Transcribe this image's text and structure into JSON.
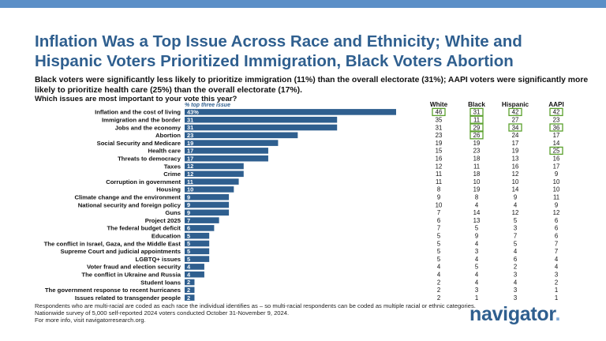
{
  "header": {
    "title": "Inflation Was a Top Issue Across Race and Ethnicity; White and Hispanic Voters Prioritized Immigration, Black Voters Abortion",
    "subtitle": "Black voters were significantly less likely to prioritize immigration (11%) than the overall electorate (31%); AAPI voters were significantly more likely to prioritize health care (25%) than the overall electorate (17%).",
    "question": "Which issues are most important to your vote this year?"
  },
  "colors": {
    "accent": "#2f5f8f",
    "bar": "#2f5f8f",
    "highlight": "#5aa02c",
    "topbar": "#5b8fc7"
  },
  "chart_data": {
    "type": "bar",
    "orientation": "horizontal",
    "series_label": "% top three issue",
    "categories": [
      "Inflation and the cost of living",
      "Immigration and the border",
      "Jobs and the economy",
      "Abortion",
      "Social Security and Medicare",
      "Health care",
      "Threats to democracy",
      "Taxes",
      "Crime",
      "Corruption in government",
      "Housing",
      "Climate change and the environment",
      "National security and foreign policy",
      "Guns",
      "Project 2025",
      "The federal budget deficit",
      "Education",
      "The conflict in Israel, Gaza, and the Middle East",
      "Supreme Court and judicial appointments",
      "LGBTQ+ issues",
      "Voter fraud and election security",
      "The conflict in Ukraine and Russia",
      "Student loans",
      "The government response to recent hurricanes",
      "Issues related to transgender people"
    ],
    "values": [
      43,
      31,
      31,
      23,
      19,
      17,
      17,
      12,
      12,
      11,
      10,
      9,
      9,
      9,
      7,
      6,
      5,
      5,
      5,
      5,
      4,
      4,
      2,
      2,
      2
    ],
    "value_labels": [
      "43%",
      "31",
      "31",
      "23",
      "19",
      "17",
      "17",
      "12",
      "12",
      "11",
      "10",
      "9",
      "9",
      "9",
      "7",
      "6",
      "5",
      "5",
      "5",
      "5",
      "4",
      "4",
      "2",
      "2",
      "2"
    ],
    "xlim": [
      0,
      45
    ],
    "table": {
      "columns": [
        "White",
        "Black",
        "Hispanic",
        "AAPI"
      ],
      "rows": [
        [
          "46",
          "31",
          "42",
          "42"
        ],
        [
          "35",
          "11",
          "27",
          "23"
        ],
        [
          "31",
          "29",
          "34",
          "36"
        ],
        [
          "23",
          "26",
          "24",
          "17"
        ],
        [
          "19",
          "19",
          "17",
          "14"
        ],
        [
          "15",
          "23",
          "19",
          "25"
        ],
        [
          "16",
          "18",
          "13",
          "16"
        ],
        [
          "12",
          "11",
          "16",
          "17"
        ],
        [
          "11",
          "18",
          "12",
          "9"
        ],
        [
          "11",
          "10",
          "10",
          "10"
        ],
        [
          "8",
          "19",
          "14",
          "10"
        ],
        [
          "9",
          "8",
          "9",
          "11"
        ],
        [
          "10",
          "4",
          "4",
          "9"
        ],
        [
          "7",
          "14",
          "12",
          "12"
        ],
        [
          "6",
          "13",
          "5",
          "6"
        ],
        [
          "7",
          "5",
          "3",
          "6"
        ],
        [
          "5",
          "9",
          "7",
          "6"
        ],
        [
          "5",
          "4",
          "5",
          "7"
        ],
        [
          "5",
          "3",
          "4",
          "7"
        ],
        [
          "5",
          "4",
          "6",
          "4"
        ],
        [
          "4",
          "5",
          "2",
          "4"
        ],
        [
          "4",
          "4",
          "3",
          "3"
        ],
        [
          "2",
          "4",
          "4",
          "2"
        ],
        [
          "2",
          "3",
          "3",
          "1"
        ],
        [
          "2",
          "1",
          "3",
          "1"
        ]
      ],
      "highlighted": [
        [
          0,
          0
        ],
        [
          0,
          1
        ],
        [
          0,
          2
        ],
        [
          0,
          3
        ],
        [
          1,
          1
        ],
        [
          2,
          1
        ],
        [
          2,
          2
        ],
        [
          2,
          3
        ],
        [
          3,
          1
        ],
        [
          5,
          3
        ]
      ]
    }
  },
  "footer": {
    "note": "Respondents who are multi-racial are coded as each race the individual identifies as – so multi-racial respondents can be coded as multiple racial or ethnic categories. Nationwide survey of 5,000 self-reported 2024 voters conducted October 31-November 9, 2024.",
    "info": "For more info, visit navigatorresearch.org."
  },
  "logo": {
    "text": "navigator",
    "dot": "."
  }
}
